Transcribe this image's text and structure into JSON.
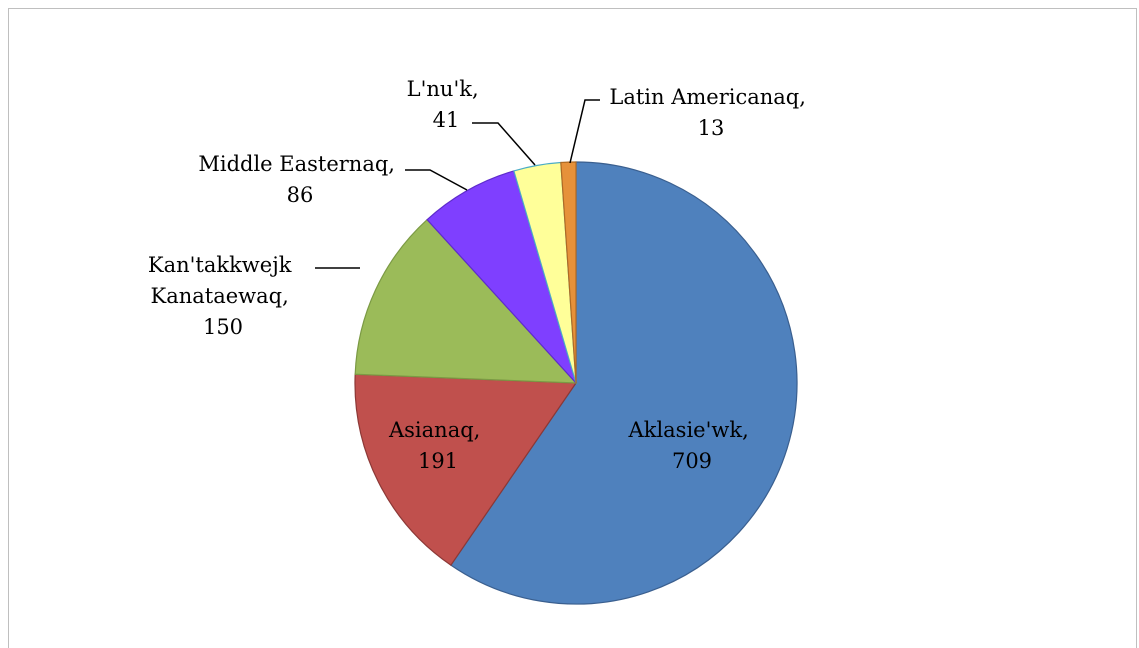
{
  "chart_data": {
    "type": "pie",
    "start_angle_deg": 0,
    "direction": "clockwise",
    "slices": [
      {
        "label": "Aklasie'wk",
        "value": 709,
        "color": "#4f81bd",
        "stroke": "#3a5f8f"
      },
      {
        "label": "Asianaq",
        "value": 191,
        "color": "#c0504d",
        "stroke": "#8c3836"
      },
      {
        "label": "Kan'takkwejk Kanataewaq",
        "value": 150,
        "color": "#9bbb59",
        "stroke": "#7b9a44"
      },
      {
        "label": "Middle Easternaq",
        "value": 86,
        "color": "#7f3fff",
        "stroke": "#5e2ccc"
      },
      {
        "label": "L'nu'k",
        "value": 41,
        "color": "#ffff99",
        "stroke": "#4bacc6"
      },
      {
        "label": "Latin Americanaq",
        "value": 13,
        "color": "#e6913a",
        "stroke": "#b06a22"
      }
    ],
    "data_labels": [
      {
        "lines": [
          "Aklasie'wk,",
          "709"
        ]
      },
      {
        "lines": [
          "Asianaq,",
          "191"
        ]
      },
      {
        "lines": [
          "Kan'takkwejk",
          "Kanataewaq,",
          "150"
        ]
      },
      {
        "lines": [
          "Middle Easternaq,",
          "86"
        ]
      },
      {
        "lines": [
          "L'nu'k,",
          "41"
        ]
      },
      {
        "lines": [
          "Latin Americanaq,",
          "13"
        ]
      }
    ],
    "legend": "none"
  }
}
